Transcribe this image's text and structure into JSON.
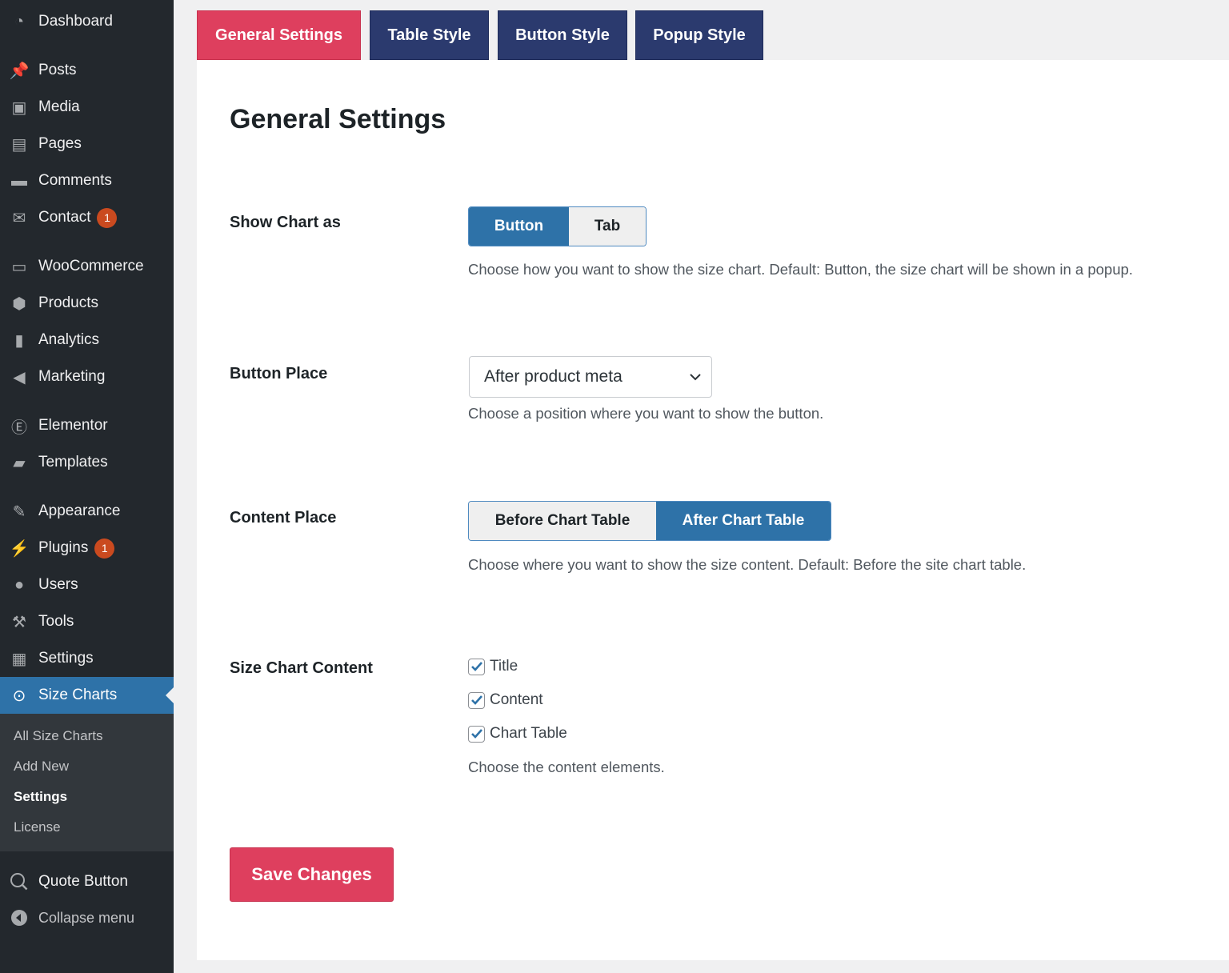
{
  "sidebar": {
    "items": [
      {
        "label": "Dashboard",
        "icon": "dashboard-icon"
      },
      {
        "label": "Posts",
        "icon": "pin-icon"
      },
      {
        "label": "Media",
        "icon": "media-icon"
      },
      {
        "label": "Pages",
        "icon": "pages-icon"
      },
      {
        "label": "Comments",
        "icon": "comment-icon"
      },
      {
        "label": "Contact",
        "icon": "mail-icon",
        "badge": "1"
      },
      {
        "label": "WooCommerce",
        "icon": "woo-icon"
      },
      {
        "label": "Products",
        "icon": "box-icon"
      },
      {
        "label": "Analytics",
        "icon": "bar-chart-icon"
      },
      {
        "label": "Marketing",
        "icon": "megaphone-icon"
      },
      {
        "label": "Elementor",
        "icon": "elementor-icon"
      },
      {
        "label": "Templates",
        "icon": "folder-icon"
      },
      {
        "label": "Appearance",
        "icon": "brush-icon"
      },
      {
        "label": "Plugins",
        "icon": "plug-icon",
        "badge": "1"
      },
      {
        "label": "Users",
        "icon": "user-icon"
      },
      {
        "label": "Tools",
        "icon": "wrench-icon"
      },
      {
        "label": "Settings",
        "icon": "settings-icon"
      },
      {
        "label": "Size Charts",
        "icon": "measuring-tape-icon"
      }
    ],
    "submenu": [
      "All Size Charts",
      "Add New",
      "Settings",
      "License"
    ],
    "quote": "Quote Button",
    "collapse": "Collapse menu"
  },
  "tabs": [
    "General Settings",
    "Table Style",
    "Button Style",
    "Popup Style"
  ],
  "main": {
    "title": "General Settings",
    "show_chart": {
      "label": "Show Chart as",
      "options": [
        "Button",
        "Tab"
      ],
      "selected": "Button",
      "desc": "Choose how you want to show the size chart. Default: Button, the size chart will be shown in a popup."
    },
    "button_place": {
      "label": "Button Place",
      "value": "After product meta",
      "desc": "Choose a position where you want to show the button."
    },
    "content_place": {
      "label": "Content Place",
      "options": [
        "Before Chart Table",
        "After Chart Table"
      ],
      "selected": "After Chart Table",
      "desc": "Choose where you want to show the size content. Default: Before the site chart table."
    },
    "size_chart_content": {
      "label": "Size Chart Content",
      "options": [
        {
          "label": "Title",
          "checked": true
        },
        {
          "label": "Content",
          "checked": true
        },
        {
          "label": "Chart Table",
          "checked": true
        }
      ],
      "desc": "Choose the content elements."
    },
    "save": "Save Changes"
  },
  "colors": {
    "accent": "#de3f5e",
    "tab": "#2b3a6e",
    "selected": "#2e72a8",
    "sidebar": "#23282d"
  }
}
